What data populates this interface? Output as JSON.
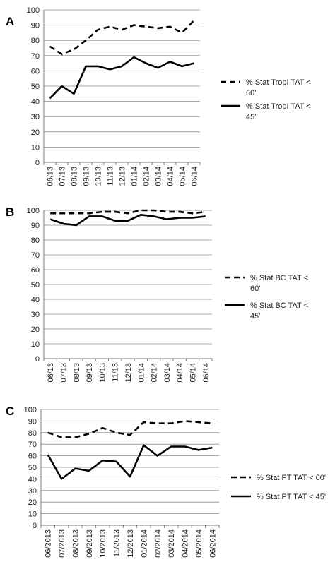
{
  "chart_data": [
    {
      "panel_label": "A",
      "type": "line",
      "categories": [
        "06/13",
        "07/13",
        "08/13",
        "09/13",
        "10/13",
        "11/13",
        "12/13",
        "01/14",
        "02/14",
        "03/14",
        "04/14",
        "05/14",
        "06/14"
      ],
      "ylim": [
        0,
        100
      ],
      "yticks": [
        0,
        10,
        20,
        30,
        40,
        50,
        60,
        70,
        80,
        90,
        100
      ],
      "grid": true,
      "legend_position": "right",
      "series": [
        {
          "name": "% Stat TropI TAT < 60'",
          "name_lines": [
            "% Stat TropI TAT <",
            "60'"
          ],
          "style": "dashed",
          "values": [
            76,
            71,
            74,
            80,
            87,
            89,
            87,
            90,
            89,
            88,
            89,
            85,
            93
          ]
        },
        {
          "name": "% Stat TropI  TAT < 45'",
          "name_lines": [
            "% Stat TropI  TAT <",
            "45'"
          ],
          "style": "solid",
          "values": [
            42,
            50,
            45,
            63,
            63,
            61,
            63,
            69,
            65,
            62,
            66,
            63,
            65
          ]
        }
      ]
    },
    {
      "panel_label": "B",
      "type": "line",
      "categories": [
        "06/13",
        "07/13",
        "08/13",
        "09/13",
        "10/13",
        "11/13",
        "12/13",
        "01/14",
        "02/14",
        "03/14",
        "04/14",
        "05/14",
        "06/14"
      ],
      "ylim": [
        0,
        100
      ],
      "yticks": [
        0,
        10,
        20,
        30,
        40,
        50,
        60,
        70,
        80,
        90,
        100
      ],
      "grid": true,
      "legend_position": "right",
      "series": [
        {
          "name": "% Stat BC TAT < 60'",
          "name_lines": [
            "% Stat BC TAT <",
            "60'"
          ],
          "style": "dashed",
          "values": [
            98,
            98,
            98,
            98,
            99,
            99,
            98,
            100,
            100,
            99,
            99,
            98,
            99
          ]
        },
        {
          "name": "% Stat BC TAT < 45'",
          "name_lines": [
            "% Stat BC TAT <",
            "45'"
          ],
          "style": "solid",
          "values": [
            94,
            91,
            90,
            96,
            96,
            93,
            93,
            97,
            96,
            94,
            95,
            95,
            96
          ]
        }
      ]
    },
    {
      "panel_label": "C",
      "type": "line",
      "categories": [
        "06/2013",
        "07/2013",
        "08/2013",
        "09/2013",
        "10/2013",
        "11/2013",
        "12/2013",
        "01/2014",
        "02/2014",
        "03/2014",
        "04/2014",
        "05/2014",
        "06/2014"
      ],
      "ylim": [
        0,
        100
      ],
      "yticks": [
        0,
        10,
        20,
        30,
        40,
        50,
        60,
        70,
        80,
        90,
        100
      ],
      "grid": true,
      "legend_position": "right",
      "series": [
        {
          "name": "% Stat PT TAT < 60'",
          "name_lines": [
            "% Stat PT TAT < 60'"
          ],
          "style": "dashed",
          "values": [
            80,
            76,
            76,
            79,
            84,
            80,
            78,
            89,
            88,
            88,
            90,
            89,
            88
          ]
        },
        {
          "name": "% Stat PT  TAT < 45'",
          "name_lines": [
            "% Stat PT  TAT < 45'"
          ],
          "style": "solid",
          "values": [
            61,
            40,
            49,
            47,
            56,
            55,
            42,
            69,
            60,
            68,
            68,
            65,
            67
          ]
        }
      ]
    }
  ]
}
